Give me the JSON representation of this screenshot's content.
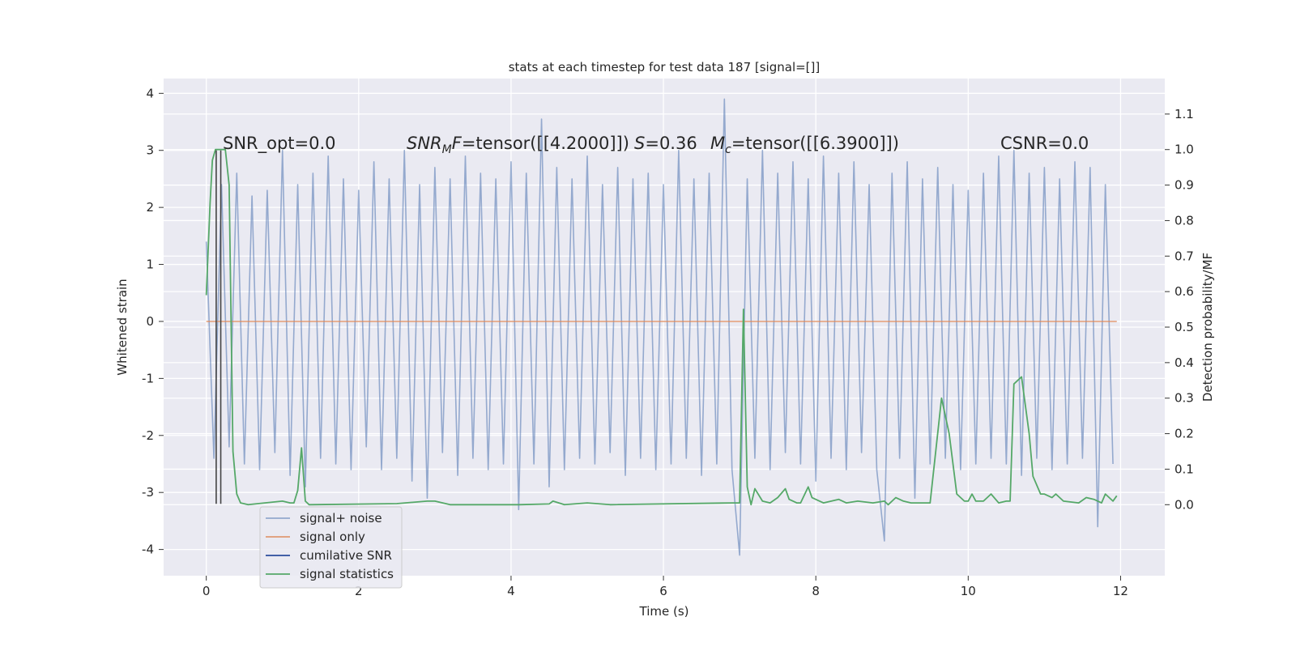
{
  "chart_data": {
    "type": "line",
    "title": "stats at each timestep for test data 187 [signal=[]]",
    "x_label": "Time (s)",
    "y_label": "Whitened strain",
    "y2_label": "Detection probability/MF",
    "xlim": [
      -0.56,
      12.58
    ],
    "ylim": [
      -4.46,
      4.26
    ],
    "y2lim": [
      -0.2,
      1.2
    ],
    "xticks": [
      0,
      2,
      4,
      6,
      8,
      10,
      12
    ],
    "yticks": [
      -4,
      -3,
      -2,
      -1,
      0,
      1,
      2,
      3,
      4
    ],
    "y2ticks": [
      {
        "value": 0,
        "label": "0.0"
      },
      0.1,
      0.2,
      0.3,
      0.4,
      0.5,
      0.6,
      0.7,
      0.8,
      0.9,
      {
        "value": 1,
        "label": "1.0"
      },
      1.1
    ],
    "grid": true,
    "legend": "lower left",
    "series": [
      {
        "name": "signal+ noise",
        "color": "#4c72b0",
        "x": [
          0,
          0.1,
          0.2,
          0.3,
          0.4,
          0.5,
          0.6,
          0.7,
          0.8,
          0.9,
          1,
          1.1,
          1.2,
          1.3,
          1.4,
          1.5,
          1.6,
          1.7,
          1.8,
          1.9,
          2,
          2.1,
          2.2,
          2.3,
          2.4,
          2.5,
          2.6,
          2.7,
          2.8,
          2.9,
          3,
          3.1,
          3.2,
          3.3,
          3.4,
          3.5,
          3.6,
          3.7,
          3.8,
          3.9,
          4,
          4.1,
          4.2,
          4.3,
          4.4,
          4.5,
          4.6,
          4.7,
          4.8,
          4.9,
          5,
          5.1,
          5.2,
          5.3,
          5.4,
          5.5,
          5.6,
          5.7,
          5.8,
          5.9,
          6,
          6.1,
          6.2,
          6.3,
          6.4,
          6.5,
          6.6,
          6.7,
          6.8,
          6.9,
          7,
          7.1,
          7.2,
          7.3,
          7.4,
          7.5,
          7.6,
          7.7,
          7.8,
          7.9,
          8,
          8.1,
          8.2,
          8.3,
          8.4,
          8.5,
          8.6,
          8.7,
          8.8,
          8.9,
          9,
          9.1,
          9.2,
          9.3,
          9.4,
          9.5,
          9.6,
          9.7,
          9.8,
          9.9,
          10,
          10.1,
          10.2,
          10.3,
          10.4,
          10.5,
          10.6,
          10.7,
          10.8,
          10.9,
          11,
          11.1,
          11.2,
          11.3,
          11.4,
          11.5,
          11.6,
          11.7,
          11.8,
          11.9
        ],
        "values": [
          1.4,
          -2.4,
          2.4,
          -2.2,
          2.6,
          -2.5,
          2.2,
          -2.6,
          2.3,
          -2.3,
          3.0,
          -2.7,
          2.4,
          -2.9,
          2.6,
          -2.4,
          2.9,
          -2.5,
          2.5,
          -2.6,
          2.3,
          -2.2,
          2.8,
          -2.6,
          2.5,
          -2.4,
          3.0,
          -2.8,
          2.4,
          -3.1,
          2.7,
          -2.3,
          2.5,
          -2.7,
          2.9,
          -2.4,
          2.6,
          -2.6,
          2.5,
          -2.5,
          2.8,
          -3.3,
          2.6,
          -2.5,
          3.55,
          -2.9,
          2.7,
          -2.6,
          2.5,
          -2.4,
          2.9,
          -2.5,
          2.4,
          -2.3,
          2.7,
          -2.7,
          2.5,
          -2.4,
          2.6,
          -2.6,
          2.4,
          -2.5,
          3.0,
          -2.4,
          2.5,
          -2.7,
          2.6,
          -2.5,
          3.9,
          -2.6,
          -4.1,
          2.5,
          -2.4,
          3.0,
          -2.6,
          2.6,
          -2.3,
          2.8,
          -2.5,
          2.5,
          -2.8,
          2.9,
          -2.4,
          2.6,
          -2.6,
          2.8,
          -2.3,
          2.4,
          -2.6,
          -3.85,
          2.6,
          -2.4,
          2.8,
          -3.1,
          2.5,
          -2.5,
          2.7,
          -2.4,
          2.4,
          -2.6,
          2.3,
          -2.5,
          2.6,
          -2.4,
          2.9,
          -2.5,
          3.0,
          -2.7,
          2.6,
          -2.4,
          2.7,
          -2.6,
          2.5,
          -2.5,
          2.8,
          -2.4,
          2.7,
          -3.6,
          2.4,
          -2.5
        ]
      },
      {
        "name": "signal only",
        "color": "#dd8452",
        "x": [
          0,
          11.95
        ],
        "values": [
          0,
          0
        ]
      },
      {
        "name": "cumilative SNR",
        "color": "#2a4d9c",
        "x": [],
        "values": []
      },
      {
        "name": "signal statistics",
        "color": "#55a868",
        "axis": "y2",
        "x": [
          0,
          0.05,
          0.08,
          0.12,
          0.2,
          0.25,
          0.3,
          0.35,
          0.4,
          0.45,
          0.55,
          1.0,
          1.1,
          1.15,
          1.2,
          1.25,
          1.3,
          1.35,
          2.5,
          2.9,
          3.0,
          3.2,
          4.1,
          4.5,
          4.55,
          4.7,
          5.0,
          5.3,
          6.9,
          7.0,
          7.05,
          7.1,
          7.15,
          7.2,
          7.3,
          7.4,
          7.5,
          7.6,
          7.65,
          7.75,
          7.8,
          7.9,
          7.95,
          8.05,
          8.1,
          8.3,
          8.4,
          8.55,
          8.75,
          8.9,
          8.95,
          9.05,
          9.15,
          9.25,
          9.4,
          9.5,
          9.65,
          9.75,
          9.85,
          9.95,
          10.0,
          10.05,
          10.1,
          10.2,
          10.3,
          10.4,
          10.5,
          10.55,
          10.6,
          10.7,
          10.8,
          10.85,
          10.95,
          11.0,
          11.1,
          11.15,
          11.25,
          11.45,
          11.55,
          11.65,
          11.75,
          11.8,
          11.9,
          11.95
        ],
        "values": [
          0.59,
          0.85,
          0.97,
          1.0,
          1.0,
          1.0,
          0.9,
          0.15,
          0.03,
          0.005,
          0.0,
          0.01,
          0.005,
          0.005,
          0.04,
          0.16,
          0.01,
          0.0,
          0.003,
          0.01,
          0.01,
          0.0,
          0.0,
          0.002,
          0.01,
          0.0,
          0.005,
          0.0,
          0.005,
          0.005,
          0.55,
          0.05,
          0.0,
          0.045,
          0.01,
          0.005,
          0.02,
          0.045,
          0.015,
          0.005,
          0.005,
          0.05,
          0.02,
          0.01,
          0.005,
          0.015,
          0.005,
          0.01,
          0.005,
          0.01,
          0.0,
          0.02,
          0.01,
          0.005,
          0.005,
          0.005,
          0.3,
          0.2,
          0.03,
          0.01,
          0.01,
          0.03,
          0.01,
          0.01,
          0.03,
          0.005,
          0.01,
          0.01,
          0.34,
          0.36,
          0.2,
          0.08,
          0.03,
          0.03,
          0.02,
          0.03,
          0.01,
          0.005,
          0.02,
          0.015,
          0.005,
          0.03,
          0.01,
          0.025
        ]
      }
    ],
    "vlines": {
      "color": "#444444",
      "x": [
        0.13,
        0.19
      ],
      "y": [
        -3.2,
        3.0
      ]
    },
    "annotations": [
      {
        "parts": [
          {
            "text": "SNR_opt=0.0"
          }
        ]
      },
      {
        "parts": [
          {
            "text": "SNR",
            "style": "italic"
          },
          {
            "text": "M",
            "style": "sub"
          },
          {
            "text": "F",
            "style": "italic"
          },
          {
            "text": "=tensor([[4.2000]])"
          }
        ]
      },
      {
        "parts": [
          {
            "text": "S",
            "style": "italic"
          },
          {
            "text": "=0.36"
          }
        ]
      },
      {
        "parts": [
          {
            "text": "M",
            "style": "italic"
          },
          {
            "text": "c",
            "style": "sub"
          },
          {
            "text": "=tensor([[6.3900]])"
          }
        ]
      },
      {
        "parts": [
          {
            "text": "CSNR=0.0"
          }
        ]
      }
    ]
  }
}
